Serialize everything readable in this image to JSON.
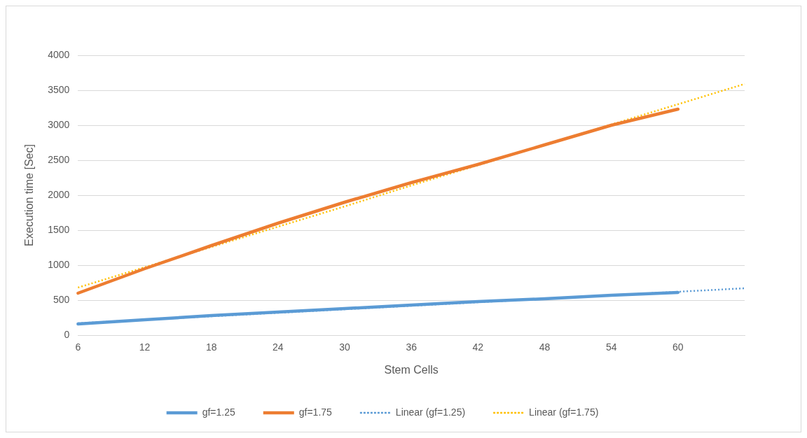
{
  "chart_data": {
    "type": "line",
    "xlabel": "Stem Cells",
    "ylabel": "Execution time [Sec]",
    "categories": [
      "6",
      "12",
      "18",
      "24",
      "30",
      "36",
      "42",
      "48",
      "54",
      "60",
      null
    ],
    "series": [
      {
        "name": "gf=1.25",
        "color": "#5b9bd5",
        "values": [
          160,
          220,
          280,
          330,
          380,
          430,
          480,
          520,
          570,
          610,
          null
        ],
        "line_style": "solid"
      },
      {
        "name": "gf=1.75",
        "color": "#ed7d31",
        "values": [
          600,
          950,
          1280,
          1600,
          1900,
          2180,
          2440,
          2720,
          3000,
          3230,
          null
        ],
        "line_style": "solid"
      },
      {
        "name": "Linear (gf=1.25)",
        "color": "#5b9bd5",
        "values": [
          170,
          220,
          270,
          320,
          370,
          420,
          470,
          520,
          570,
          620,
          670
        ],
        "line_style": "dotted"
      },
      {
        "name": "Linear (gf=1.75)",
        "color": "#ffc000",
        "values": [
          680,
          970,
          1260,
          1550,
          1840,
          2140,
          2430,
          2720,
          3010,
          3300,
          3590
        ],
        "line_style": "dotted"
      }
    ],
    "ylim": [
      0,
      4000
    ],
    "yticks": [
      0,
      500,
      1000,
      1500,
      2000,
      2500,
      3000,
      3500,
      4000
    ],
    "grid": "y",
    "legend": "bottom",
    "marker": "none"
  }
}
